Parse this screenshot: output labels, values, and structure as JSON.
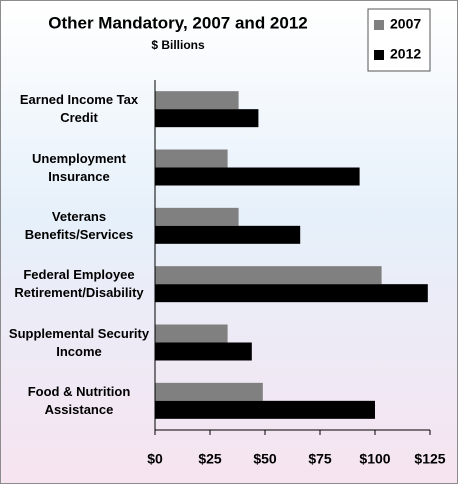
{
  "chart_data": {
    "type": "hbar",
    "title": "Other Mandatory, 2007 and 2012",
    "subtitle": "$ Billions",
    "categories": [
      "Earned Income Tax Credit",
      "Unemployment Insurance",
      "Veterans Benefits/Services",
      "Federal Employee Retirement/Disability",
      "Supplemental Security Income",
      "Food & Nutrition Assistance"
    ],
    "series": [
      {
        "name": "2007",
        "color": "#808080",
        "values": [
          38,
          33,
          38,
          103,
          33,
          49
        ]
      },
      {
        "name": "2012",
        "color": "#000000",
        "values": [
          47,
          93,
          66,
          124,
          44,
          100
        ]
      }
    ],
    "xlim": [
      0,
      125
    ],
    "xticks": [
      {
        "value": 0,
        "label": "$0"
      },
      {
        "value": 25,
        "label": "$25"
      },
      {
        "value": 50,
        "label": "$50"
      },
      {
        "value": 75,
        "label": "$75"
      },
      {
        "value": 100,
        "label": "$100"
      },
      {
        "value": 125,
        "label": "$125"
      }
    ],
    "legend": "top-right"
  }
}
